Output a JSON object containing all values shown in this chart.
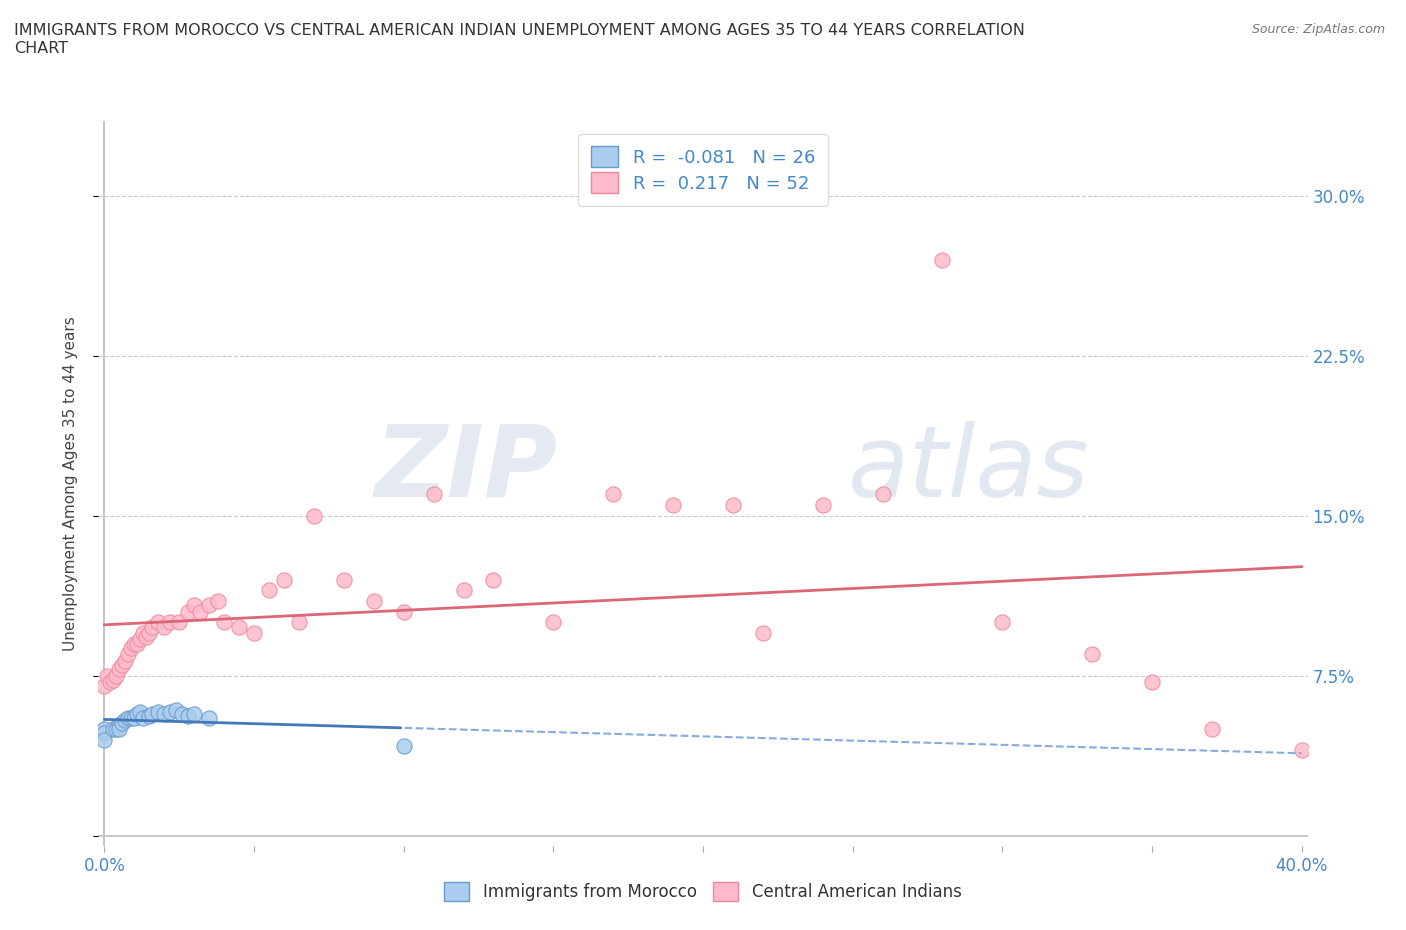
{
  "title": "IMMIGRANTS FROM MOROCCO VS CENTRAL AMERICAN INDIAN UNEMPLOYMENT AMONG AGES 35 TO 44 YEARS CORRELATION\nCHART",
  "source_text": "Source: ZipAtlas.com",
  "ylabel": "Unemployment Among Ages 35 to 44 years",
  "xlim": [
    -0.002,
    0.402
  ],
  "ylim": [
    -0.005,
    0.335
  ],
  "xticks": [
    0.0,
    0.05,
    0.1,
    0.15,
    0.2,
    0.25,
    0.3,
    0.35,
    0.4
  ],
  "xticklabels": [
    "0.0%",
    "",
    "",
    "",
    "",
    "",
    "",
    "",
    "40.0%"
  ],
  "yticks": [
    0.0,
    0.075,
    0.15,
    0.225,
    0.3
  ],
  "yticklabels": [
    "",
    "7.5%",
    "15.0%",
    "22.5%",
    "30.0%"
  ],
  "grid_color": "#cccccc",
  "background_color": "#ffffff",
  "watermark_text": "ZIP",
  "watermark_text2": "atlas",
  "morocco_color": "#aaccee",
  "morocco_edge": "#6699cc",
  "central_color": "#ffbbcc",
  "central_edge": "#ee8899",
  "morocco_R": -0.081,
  "morocco_N": 26,
  "central_R": 0.217,
  "central_N": 52,
  "legend_label_morocco": "Immigrants from Morocco",
  "legend_label_central": "Central American Indians",
  "morocco_x": [
    0.0,
    0.0,
    0.0,
    0.003,
    0.004,
    0.005,
    0.005,
    0.006,
    0.007,
    0.008,
    0.009,
    0.01,
    0.011,
    0.012,
    0.013,
    0.015,
    0.016,
    0.018,
    0.02,
    0.022,
    0.024,
    0.026,
    0.028,
    0.03,
    0.035,
    0.1
  ],
  "morocco_y": [
    0.05,
    0.048,
    0.045,
    0.05,
    0.05,
    0.052,
    0.05,
    0.053,
    0.054,
    0.055,
    0.055,
    0.055,
    0.057,
    0.058,
    0.055,
    0.056,
    0.057,
    0.058,
    0.057,
    0.058,
    0.059,
    0.057,
    0.056,
    0.057,
    0.055,
    0.042
  ],
  "central_x": [
    0.0,
    0.001,
    0.002,
    0.003,
    0.004,
    0.005,
    0.006,
    0.007,
    0.008,
    0.009,
    0.01,
    0.011,
    0.012,
    0.013,
    0.014,
    0.015,
    0.016,
    0.018,
    0.02,
    0.022,
    0.025,
    0.028,
    0.03,
    0.032,
    0.035,
    0.038,
    0.04,
    0.045,
    0.05,
    0.055,
    0.06,
    0.065,
    0.07,
    0.08,
    0.09,
    0.1,
    0.11,
    0.12,
    0.13,
    0.15,
    0.17,
    0.19,
    0.21,
    0.22,
    0.24,
    0.26,
    0.28,
    0.3,
    0.33,
    0.35,
    0.37,
    0.4
  ],
  "central_y": [
    0.07,
    0.075,
    0.072,
    0.073,
    0.075,
    0.078,
    0.08,
    0.082,
    0.085,
    0.088,
    0.09,
    0.09,
    0.092,
    0.095,
    0.093,
    0.095,
    0.098,
    0.1,
    0.098,
    0.1,
    0.1,
    0.105,
    0.108,
    0.105,
    0.108,
    0.11,
    0.1,
    0.098,
    0.095,
    0.115,
    0.12,
    0.1,
    0.15,
    0.12,
    0.11,
    0.105,
    0.16,
    0.115,
    0.12,
    0.1,
    0.16,
    0.155,
    0.155,
    0.095,
    0.155,
    0.16,
    0.27,
    0.1,
    0.085,
    0.072,
    0.05,
    0.04
  ]
}
